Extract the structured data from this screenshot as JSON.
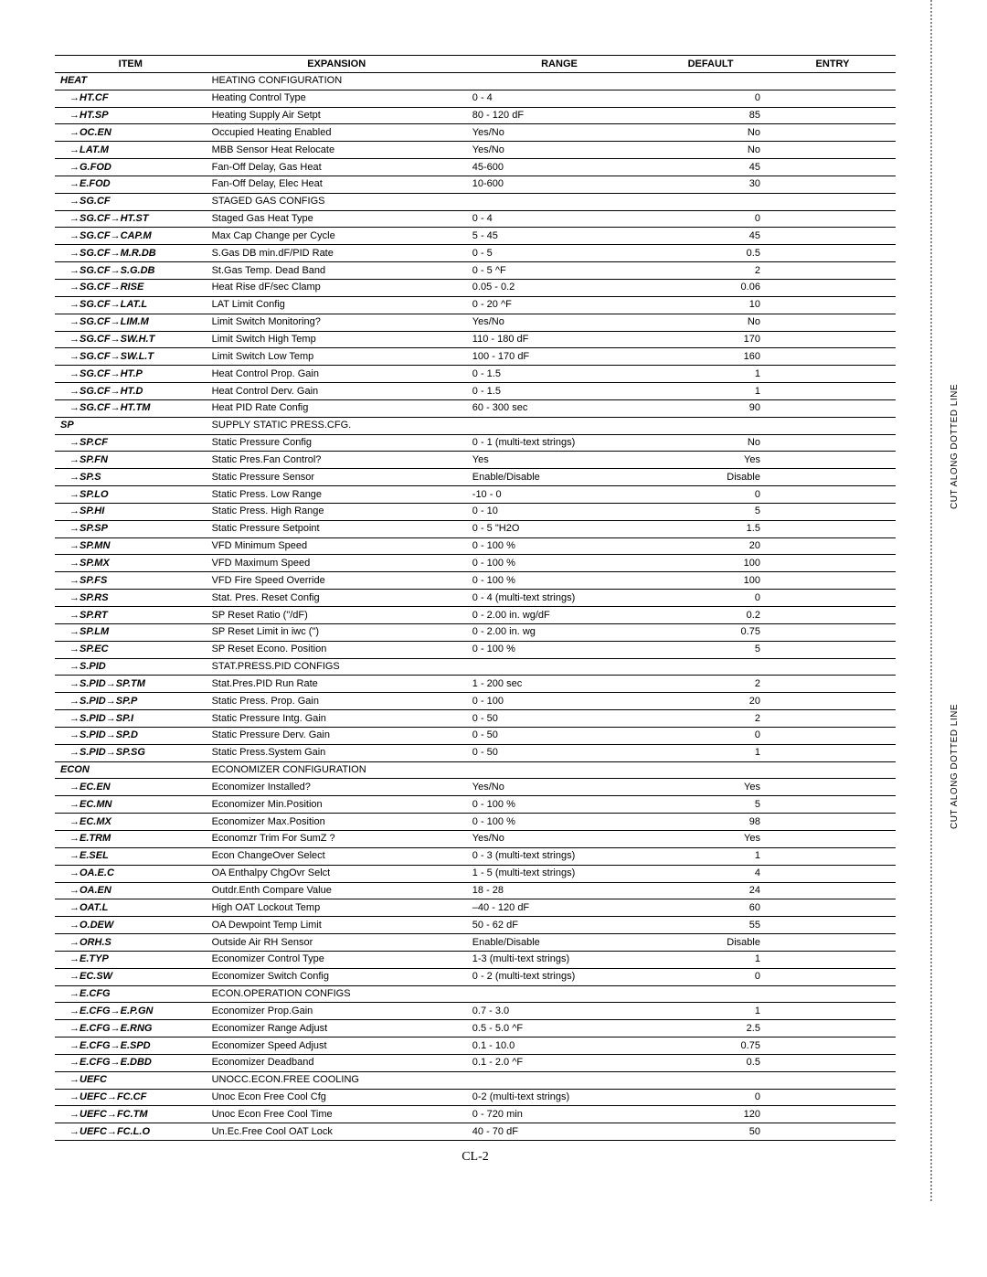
{
  "page_label": "CL-2",
  "cut_label": "CUT ALONG DOTTED LINE",
  "headers": [
    "ITEM",
    "EXPANSION",
    "RANGE",
    "DEFAULT",
    "ENTRY"
  ],
  "rows": [
    {
      "item": "HEAT",
      "sub": false,
      "exp": "HEATING CONFIGURATION",
      "range": "",
      "def": ""
    },
    {
      "item": "→HT.CF",
      "sub": true,
      "exp": "Heating Control Type",
      "range": "0 - 4",
      "def": "0"
    },
    {
      "item": "→HT.SP",
      "sub": true,
      "exp": "Heating Supply Air Setpt",
      "range": "80 - 120 dF",
      "def": "85"
    },
    {
      "item": "→OC.EN",
      "sub": true,
      "exp": "Occupied Heating Enabled",
      "range": "Yes/No",
      "def": "No"
    },
    {
      "item": "→LAT.M",
      "sub": true,
      "exp": "MBB Sensor Heat Relocate",
      "range": "Yes/No",
      "def": "No"
    },
    {
      "item": "→G.FOD",
      "sub": true,
      "exp": "Fan-Off Delay, Gas Heat",
      "range": "45-600",
      "def": "45"
    },
    {
      "item": "→E.FOD",
      "sub": true,
      "exp": "Fan-Off Delay, Elec Heat",
      "range": "10-600",
      "def": "30"
    },
    {
      "item": "→SG.CF",
      "sub": true,
      "exp": "STAGED GAS CONFIGS",
      "range": "",
      "def": ""
    },
    {
      "item": "→SG.CF→HT.ST",
      "sub": true,
      "exp": "Staged Gas Heat Type",
      "range": "0 - 4",
      "def": "0"
    },
    {
      "item": "→SG.CF→CAP.M",
      "sub": true,
      "exp": "Max Cap Change per Cycle",
      "range": "5 - 45",
      "def": "45"
    },
    {
      "item": "→SG.CF→M.R.DB",
      "sub": true,
      "exp": "S.Gas DB min.dF/PID Rate",
      "range": "0 - 5",
      "def": "0.5"
    },
    {
      "item": "→SG.CF→S.G.DB",
      "sub": true,
      "exp": "St.Gas Temp. Dead Band",
      "range": "0 - 5 ^F",
      "def": "2"
    },
    {
      "item": "→SG.CF→RISE",
      "sub": true,
      "exp": "Heat Rise dF/sec Clamp",
      "range": "0.05 - 0.2",
      "def": "0.06"
    },
    {
      "item": "→SG.CF→LAT.L",
      "sub": true,
      "exp": "LAT Limit Config",
      "range": "0 - 20 ^F",
      "def": "10"
    },
    {
      "item": "→SG.CF→LIM.M",
      "sub": true,
      "exp": "Limit Switch Monitoring?",
      "range": "Yes/No",
      "def": "No"
    },
    {
      "item": "→SG.CF→SW.H.T",
      "sub": true,
      "exp": "Limit Switch High Temp",
      "range": "110 - 180 dF",
      "def": "170"
    },
    {
      "item": "→SG.CF→SW.L.T",
      "sub": true,
      "exp": "Limit Switch Low Temp",
      "range": "100 - 170 dF",
      "def": "160"
    },
    {
      "item": "→SG.CF→HT.P",
      "sub": true,
      "exp": "Heat Control Prop. Gain",
      "range": "0 - 1.5",
      "def": "1"
    },
    {
      "item": "→SG.CF→HT.D",
      "sub": true,
      "exp": "Heat Control Derv. Gain",
      "range": "0 - 1.5",
      "def": "1"
    },
    {
      "item": "→SG.CF→HT.TM",
      "sub": true,
      "exp": "Heat PID Rate Config",
      "range": "60 - 300 sec",
      "def": "90"
    },
    {
      "item": "SP",
      "sub": false,
      "exp": "SUPPLY STATIC PRESS.CFG.",
      "range": "",
      "def": ""
    },
    {
      "item": "→SP.CF",
      "sub": true,
      "exp": "Static Pressure Config",
      "range": "0 - 1 (multi-text strings)",
      "def": "No"
    },
    {
      "item": "→SP.FN",
      "sub": true,
      "exp": "Static Pres.Fan Control?",
      "range": "Yes",
      "def": "Yes"
    },
    {
      "item": "→SP.S",
      "sub": true,
      "exp": "Static Pressure Sensor",
      "range": "Enable/Disable",
      "def": "Disable"
    },
    {
      "item": "→SP.LO",
      "sub": true,
      "exp": "Static Press. Low Range",
      "range": "-10 - 0",
      "def": "0"
    },
    {
      "item": "→SP.HI",
      "sub": true,
      "exp": "Static Press. High Range",
      "range": "0 - 10",
      "def": "5"
    },
    {
      "item": "→SP.SP",
      "sub": true,
      "exp": "Static Pressure Setpoint",
      "range": "0 - 5 \"H2O",
      "def": "1.5"
    },
    {
      "item": "→SP.MN",
      "sub": true,
      "exp": "VFD Minimum Speed",
      "range": "0 - 100 %",
      "def": "20"
    },
    {
      "item": "→SP.MX",
      "sub": true,
      "exp": "VFD Maximum Speed",
      "range": "0 - 100 %",
      "def": "100"
    },
    {
      "item": "→SP.FS",
      "sub": true,
      "exp": "VFD Fire Speed Override",
      "range": "0 - 100 %",
      "def": "100"
    },
    {
      "item": "→SP.RS",
      "sub": true,
      "exp": "Stat. Pres. Reset Config",
      "range": "0 - 4 (multi-text strings)",
      "def": "0"
    },
    {
      "item": "→SP.RT",
      "sub": true,
      "exp": "SP Reset Ratio (\"/dF)",
      "range": "0 - 2.00 in. wg/dF",
      "def": "0.2"
    },
    {
      "item": "→SP.LM",
      "sub": true,
      "exp": "SP Reset Limit in iwc (\")",
      "range": "0 - 2.00 in. wg",
      "def": "0.75"
    },
    {
      "item": "→SP.EC",
      "sub": true,
      "exp": "SP Reset Econo. Position",
      "range": "0 - 100 %",
      "def": "5"
    },
    {
      "item": "→S.PID",
      "sub": true,
      "exp": "STAT.PRESS.PID CONFIGS",
      "range": "",
      "def": ""
    },
    {
      "item": "→S.PID→SP.TM",
      "sub": true,
      "exp": "Stat.Pres.PID Run Rate",
      "range": "1 - 200 sec",
      "def": "2"
    },
    {
      "item": "→S.PID→SP.P",
      "sub": true,
      "exp": "Static Press. Prop. Gain",
      "range": "0 - 100",
      "def": "20"
    },
    {
      "item": "→S.PID→SP.I",
      "sub": true,
      "exp": "Static Pressure Intg. Gain",
      "range": "0 - 50",
      "def": "2"
    },
    {
      "item": "→S.PID→SP.D",
      "sub": true,
      "exp": "Static Pressure Derv. Gain",
      "range": "0 - 50",
      "def": "0"
    },
    {
      "item": "→S.PID→SP.SG",
      "sub": true,
      "exp": "Static Press.System Gain",
      "range": "0 - 50",
      "def": "1"
    },
    {
      "item": "ECON",
      "sub": false,
      "exp": "ECONOMIZER CONFIGURATION",
      "range": "",
      "def": ""
    },
    {
      "item": "→EC.EN",
      "sub": true,
      "exp": "Economizer Installed?",
      "range": "Yes/No",
      "def": "Yes"
    },
    {
      "item": "→EC.MN",
      "sub": true,
      "exp": "Economizer Min.Position",
      "range": "0 - 100 %",
      "def": "5"
    },
    {
      "item": "→EC.MX",
      "sub": true,
      "exp": "Economizer Max.Position",
      "range": "0 - 100 %",
      "def": "98"
    },
    {
      "item": "→E.TRM",
      "sub": true,
      "exp": "Economzr Trim For SumZ ?",
      "range": "Yes/No",
      "def": "Yes"
    },
    {
      "item": "→E.SEL",
      "sub": true,
      "exp": "Econ ChangeOver Select",
      "range": "0 - 3 (multi-text strings)",
      "def": "1"
    },
    {
      "item": "→OA.E.C",
      "sub": true,
      "exp": "OA Enthalpy ChgOvr Selct",
      "range": "1 - 5 (multi-text strings)",
      "def": "4"
    },
    {
      "item": "→OA.EN",
      "sub": true,
      "exp": "Outdr.Enth Compare Value",
      "range": "18 - 28",
      "def": "24"
    },
    {
      "item": "→OAT.L",
      "sub": true,
      "exp": "High OAT Lockout Temp",
      "range": "–40 - 120 dF",
      "def": "60"
    },
    {
      "item": "→O.DEW",
      "sub": true,
      "exp": "OA Dewpoint Temp Limit",
      "range": "50 - 62 dF",
      "def": "55"
    },
    {
      "item": "→ORH.S",
      "sub": true,
      "exp": "Outside Air RH Sensor",
      "range": "Enable/Disable",
      "def": "Disable"
    },
    {
      "item": "→E.TYP",
      "sub": true,
      "exp": "Economizer Control Type",
      "range": "1-3 (multi-text strings)",
      "def": "1"
    },
    {
      "item": "→EC.SW",
      "sub": true,
      "exp": "Economizer Switch Config",
      "range": "0 - 2 (multi-text strings)",
      "def": "0"
    },
    {
      "item": "→E.CFG",
      "sub": true,
      "exp": "ECON.OPERATION CONFIGS",
      "range": "",
      "def": ""
    },
    {
      "item": "→E.CFG→E.P.GN",
      "sub": true,
      "exp": "Economizer Prop.Gain",
      "range": "0.7 - 3.0",
      "def": "1"
    },
    {
      "item": "→E.CFG→E.RNG",
      "sub": true,
      "exp": "Economizer Range Adjust",
      "range": "0.5 - 5.0 ^F",
      "def": "2.5"
    },
    {
      "item": "→E.CFG→E.SPD",
      "sub": true,
      "exp": "Economizer Speed Adjust",
      "range": "0.1 - 10.0",
      "def": "0.75"
    },
    {
      "item": "→E.CFG→E.DBD",
      "sub": true,
      "exp": "Economizer Deadband",
      "range": "0.1 - 2.0 ^F",
      "def": "0.5"
    },
    {
      "item": "→UEFC",
      "sub": true,
      "exp": "UNOCC.ECON.FREE COOLING",
      "range": "",
      "def": ""
    },
    {
      "item": "→UEFC→FC.CF",
      "sub": true,
      "exp": "Unoc Econ Free Cool Cfg",
      "range": "0-2 (multi-text strings)",
      "def": "0"
    },
    {
      "item": "→UEFC→FC.TM",
      "sub": true,
      "exp": "Unoc Econ Free Cool Time",
      "range": "0 - 720 min",
      "def": "120"
    },
    {
      "item": "→UEFC→FC.L.O",
      "sub": true,
      "exp": "Un.Ec.Free Cool OAT Lock",
      "range": "40 - 70 dF",
      "def": "50"
    }
  ]
}
